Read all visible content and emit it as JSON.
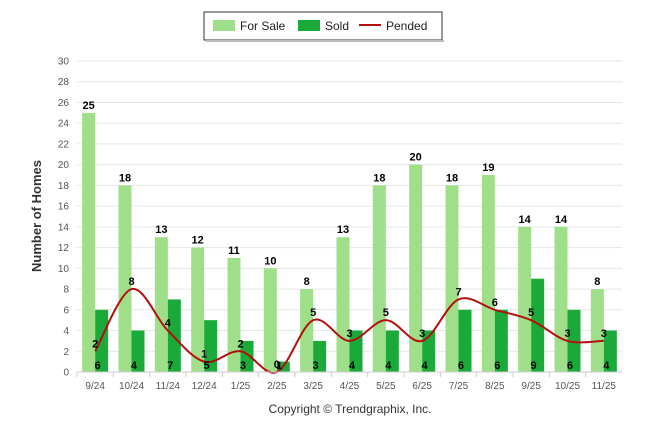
{
  "chart_data": {
    "type": "bar",
    "categories": [
      "9/24",
      "10/24",
      "11/24",
      "12/24",
      "1/25",
      "2/25",
      "3/25",
      "4/25",
      "5/25",
      "6/25",
      "7/25",
      "8/25",
      "9/25",
      "10/25",
      "11/25"
    ],
    "series": [
      {
        "name": "For Sale",
        "kind": "bar",
        "color": "#9fdf8a",
        "values": [
          25,
          18,
          13,
          12,
          11,
          10,
          8,
          13,
          18,
          20,
          18,
          19,
          14,
          14,
          8
        ]
      },
      {
        "name": "Sold",
        "kind": "bar",
        "color": "#1aaa3a",
        "values": [
          6,
          4,
          7,
          5,
          3,
          1,
          3,
          4,
          4,
          4,
          6,
          6,
          9,
          6,
          4
        ]
      },
      {
        "name": "Pended",
        "kind": "line",
        "color": "#b30f0f",
        "values": [
          2,
          8,
          4,
          1,
          2,
          0,
          5,
          3,
          5,
          3,
          7,
          6,
          5,
          3,
          3
        ]
      }
    ],
    "title": "",
    "xlabel": "",
    "ylabel": "Number of Homes",
    "ylim": [
      0,
      30
    ],
    "ytick_step": 2,
    "grid": true,
    "legend": "top-center"
  },
  "footer": {
    "copyright": "Copyright © Trendgraphix, Inc."
  }
}
